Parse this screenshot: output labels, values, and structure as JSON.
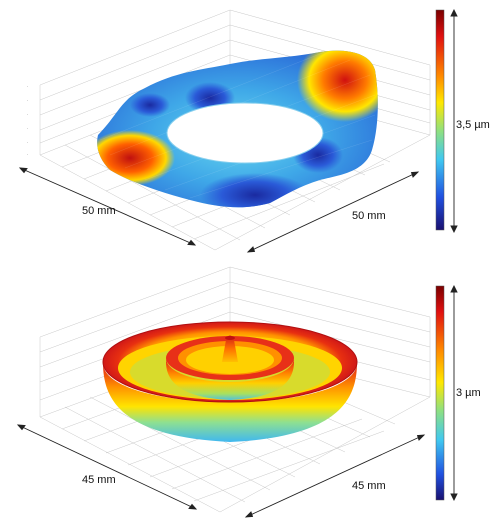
{
  "chart_data": [
    {
      "type": "surface3d",
      "panel": "top",
      "description_shape": "warped square plate with central circular hole",
      "dimension_labels": {
        "x": "50 mm",
        "y": "50 mm"
      },
      "colorbar": {
        "label": "3,5 µm",
        "colormap": "jet"
      },
      "grid": true,
      "colors": {
        "low": "#1a1a8c",
        "mid": "#59d6e6",
        "high": "#cc1a1a"
      }
    },
    {
      "type": "surface3d",
      "panel": "bottom",
      "description_shape": "circular dish with concentric raised rings and central peak",
      "dimension_labels": {
        "x": "45 mm",
        "y": "45 mm"
      },
      "colorbar": {
        "label": "3 µm",
        "colormap": "jet"
      },
      "grid": true,
      "colors": {
        "low": "#1a1a8c",
        "mid": "#8fdc7a",
        "high": "#cc1a1a"
      }
    }
  ]
}
